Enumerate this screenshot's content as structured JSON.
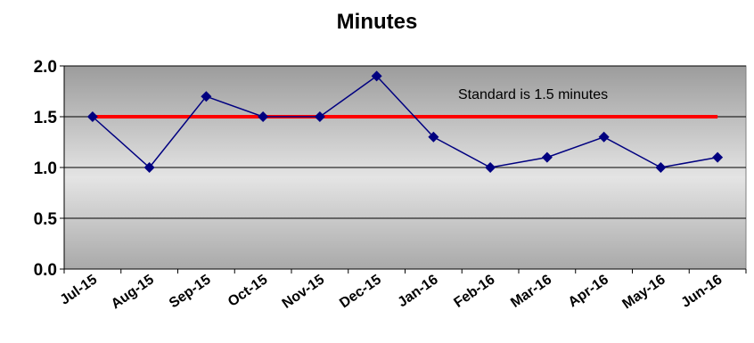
{
  "chart_data": {
    "type": "line",
    "title": "Minutes",
    "xlabel": "",
    "ylabel": "",
    "categories": [
      "Jul-15",
      "Aug-15",
      "Sep-15",
      "Oct-15",
      "Nov-15",
      "Dec-15",
      "Jan-16",
      "Feb-16",
      "Mar-16",
      "Apr-16",
      "May-16",
      "Jun-16"
    ],
    "series": [
      {
        "values": [
          1.5,
          1.0,
          1.7,
          1.5,
          1.5,
          1.9,
          1.3,
          1.0,
          1.1,
          1.3,
          1.0,
          1.1
        ],
        "color": "#000080",
        "marker": "diamond"
      }
    ],
    "reference_line": {
      "value": 1.5,
      "color": "#ff0000"
    },
    "annotation": "Standard is 1.5 minutes",
    "ylim": [
      0,
      2
    ],
    "yticks": [
      "0.0",
      "0.5",
      "1.0",
      "1.5",
      "2.0"
    ],
    "grid": true,
    "legend": "none",
    "plot_background": "gradient gray"
  }
}
